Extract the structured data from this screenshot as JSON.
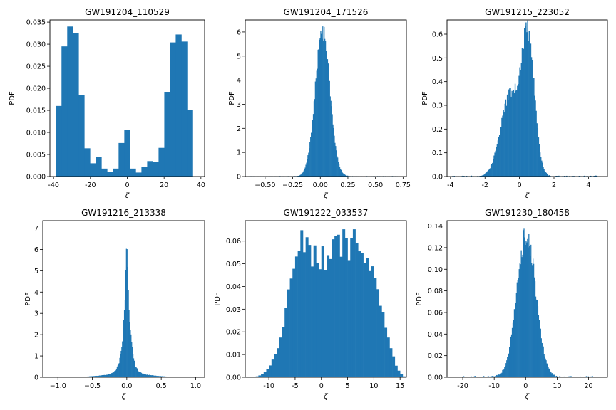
{
  "chart_data": [
    {
      "type": "bar",
      "title": "GW191204_110529",
      "xlabel": "ζ",
      "ylabel": "PDF",
      "xlim": [
        -42,
        42
      ],
      "ylim": [
        0,
        0.0355
      ],
      "xticks": [
        -40,
        -20,
        0,
        20,
        40
      ],
      "yticks": [
        0.0,
        0.005,
        0.01,
        0.015,
        0.02,
        0.025,
        0.03,
        0.035
      ],
      "ytick_decimals": 3,
      "bins": {
        "start": -38.8,
        "width": 3.1,
        "values": [
          0.016,
          0.0295,
          0.034,
          0.0325,
          0.0185,
          0.0064,
          0.003,
          0.0044,
          0.0018,
          0.001,
          0.0018,
          0.0076,
          0.0106,
          0.0018,
          0.0009,
          0.0022,
          0.0035,
          0.0033,
          0.0065,
          0.0192,
          0.0304,
          0.0322,
          0.0306,
          0.0151
        ]
      }
    },
    {
      "type": "bar",
      "title": "GW191204_171526",
      "xlabel": "ζ",
      "ylabel": "PDF",
      "xlim": [
        -0.68,
        0.78
      ],
      "ylim": [
        0,
        6.5
      ],
      "xticks": [
        -0.5,
        -0.25,
        0.0,
        0.25,
        0.5,
        0.75
      ],
      "yticks": [
        0,
        1,
        2,
        3,
        4,
        5,
        6
      ],
      "ytick_decimals": 0,
      "xtick_decimals": 2,
      "density": {
        "kind": "gauss",
        "components": [
          {
            "mu": 0.02,
            "sigma": 0.067,
            "amp": 6.0
          }
        ],
        "tail": 0.02,
        "nbins": 220,
        "xmin": -0.65,
        "xmax": 0.7,
        "noise": 0.06,
        "seed": 11
      }
    },
    {
      "type": "bar",
      "title": "GW191215_223052",
      "xlabel": "ζ",
      "ylabel": "PDF",
      "xlim": [
        -4.2,
        5.1
      ],
      "ylim": [
        0,
        0.66
      ],
      "xticks": [
        -4,
        -2,
        0,
        2,
        4
      ],
      "yticks": [
        0.0,
        0.1,
        0.2,
        0.3,
        0.4,
        0.5,
        0.6
      ],
      "ytick_decimals": 1,
      "density": {
        "kind": "gauss",
        "components": [
          {
            "mu": -0.55,
            "sigma": 0.55,
            "amp": 0.34
          },
          {
            "mu": 0.5,
            "sigma": 0.38,
            "amp": 0.56
          }
        ],
        "tail": 0.004,
        "nbins": 190,
        "xmin": -3.9,
        "xmax": 4.7,
        "noise": 0.07,
        "seed": 23
      }
    },
    {
      "type": "bar",
      "title": "GW191216_213338",
      "xlabel": "ζ",
      "ylabel": "PDF",
      "xlim": [
        -1.22,
        1.13
      ],
      "ylim": [
        0,
        7.35
      ],
      "xticks": [
        -1.0,
        -0.5,
        0.0,
        0.5,
        1.0
      ],
      "yticks": [
        0,
        1,
        2,
        3,
        4,
        5,
        6,
        7
      ],
      "ytick_decimals": 0,
      "xtick_decimals": 1,
      "density": {
        "kind": "laplace",
        "components": [
          {
            "mu": 0.0,
            "b": 0.045,
            "amp": 6.6
          },
          {
            "mu": 0.0,
            "sigma": 0.32,
            "amp": 0.17
          }
        ],
        "tail": 0.0,
        "nbins": 240,
        "xmin": -1.2,
        "xmax": 1.1,
        "noise": 0.1,
        "seed": 37
      }
    },
    {
      "type": "bar",
      "title": "GW191222_033537",
      "xlabel": "ζ",
      "ylabel": "PDF",
      "xlim": [
        -14.5,
        16.2
      ],
      "ylim": [
        0,
        0.069
      ],
      "xticks": [
        -10,
        -5,
        0,
        5,
        10,
        15
      ],
      "yticks": [
        0.0,
        0.01,
        0.02,
        0.03,
        0.04,
        0.05,
        0.06
      ],
      "ytick_decimals": 2,
      "bins": {
        "start": -13.0,
        "width": 0.5,
        "values": [
          0.0002,
          0.0004,
          0.0008,
          0.0015,
          0.0023,
          0.0035,
          0.0052,
          0.0078,
          0.0102,
          0.0128,
          0.0175,
          0.0222,
          0.0305,
          0.0387,
          0.0435,
          0.0478,
          0.0532,
          0.0558,
          0.0648,
          0.0551,
          0.0617,
          0.0583,
          0.0488,
          0.0581,
          0.0503,
          0.0476,
          0.0577,
          0.0471,
          0.0538,
          0.0521,
          0.0608,
          0.0624,
          0.0628,
          0.0531,
          0.0652,
          0.0612,
          0.0516,
          0.0612,
          0.0652,
          0.0592,
          0.0555,
          0.0548,
          0.0503,
          0.0525,
          0.0468,
          0.0489,
          0.0436,
          0.0388,
          0.0315,
          0.0288,
          0.0218,
          0.0175,
          0.0128,
          0.0092,
          0.0051,
          0.0029,
          0.0013,
          0.0004,
          0.0001
        ]
      }
    },
    {
      "type": "bar",
      "title": "GW191230_180458",
      "xlabel": "ζ",
      "ylabel": "PDF",
      "xlim": [
        -25,
        26
      ],
      "ylim": [
        0,
        0.145
      ],
      "xticks": [
        -20,
        -10,
        0,
        10,
        20
      ],
      "yticks": [
        0.0,
        0.02,
        0.04,
        0.06,
        0.08,
        0.1,
        0.12,
        0.14
      ],
      "ytick_decimals": 2,
      "density": {
        "kind": "gauss",
        "components": [
          {
            "mu": 0.2,
            "sigma": 3.0,
            "amp": 0.132
          }
        ],
        "tail": 0.0012,
        "nbins": 200,
        "xmin": -22,
        "xmax": 22,
        "noise": 0.08,
        "seed": 53
      }
    }
  ],
  "colors": {
    "bars": "#1f77b4",
    "axes": "#000000",
    "background": "#ffffff"
  }
}
